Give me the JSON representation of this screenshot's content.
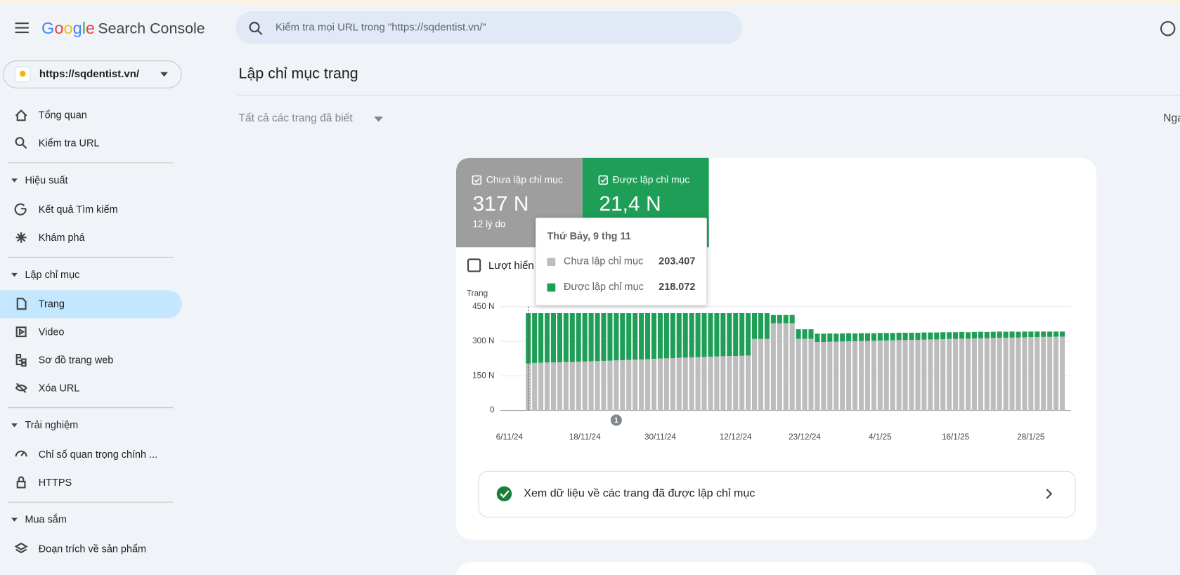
{
  "header": {
    "logo": "Google",
    "product": "Search Console",
    "search_placeholder": "Kiểm tra mọi URL trong \"https://sqdentist.vn/\""
  },
  "sidebar": {
    "property": "https://sqdentist.vn/",
    "groups": [
      {
        "items": [
          "Tổng quan",
          "Kiểm tra URL"
        ]
      },
      {
        "section": "Hiệu suất",
        "items": [
          "Kết quả Tìm kiếm",
          "Khám phá"
        ]
      },
      {
        "section": "Lập chỉ mục",
        "items": [
          "Trang",
          "Video",
          "Sơ đồ trang web",
          "Xóa URL"
        ]
      },
      {
        "section": "Trải nghiệm",
        "items": [
          "Chỉ số quan trọng chính ...",
          "HTTPS"
        ]
      },
      {
        "section": "Mua sắm",
        "items": [
          "Đoạn trích về sản phẩm"
        ]
      }
    ]
  },
  "page": {
    "title": "Lập chỉ mục trang",
    "filter": "Tất cả các trang đã biết",
    "right_cut": "Nga"
  },
  "card": {
    "tabs": [
      {
        "value": "317 N",
        "sub": "12 lý do"
      },
      {
        "value": "21,4 N"
      }
    ],
    "checkbox": "Lượt hiển thị",
    "tooltip_date": "Thứ Bảy, 9 thg 11",
    "annotation": "1",
    "link": "Xem dữ liệu về các trang đã được lập chỉ mục"
  },
  "chart_data": {
    "type": "stacked_bar",
    "y_axis_title": "Trang",
    "ylim": [
      0,
      450
    ],
    "yticks": [
      0,
      {
        "value": 150,
        "label": "150 N"
      },
      {
        "value": 300,
        "label": "300 N"
      },
      {
        "value": 450,
        "label": "450 N"
      }
    ],
    "grid": true,
    "x_axis_labels": [
      "6/11/24",
      "18/11/24",
      "30/11/24",
      "12/12/24",
      "23/12/24",
      "4/1/25",
      "16/1/25",
      "28/1/25"
    ],
    "series": [
      {
        "name": "Chưa lập chỉ mục",
        "color": "#bdbdbd",
        "values": [
          203.407,
          206,
          207,
          208,
          208,
          209,
          210,
          210,
          211,
          212,
          213,
          214,
          215,
          216,
          217,
          218,
          219,
          220,
          221,
          222,
          224,
          225,
          226,
          227,
          228,
          229,
          230,
          231,
          232,
          233,
          234,
          235,
          236,
          236,
          237,
          238,
          310,
          310,
          310,
          378,
          378,
          378,
          378,
          310,
          310,
          310,
          297,
          297,
          298,
          298,
          299,
          300,
          300,
          301,
          301,
          302,
          303,
          303,
          304,
          305,
          305,
          306,
          306,
          307,
          308,
          308,
          309,
          310,
          310,
          311,
          311,
          312,
          313,
          313,
          314,
          315,
          315,
          316,
          316,
          317,
          318,
          318,
          319,
          319,
          320,
          320
        ]
      },
      {
        "name": "Được lập chỉ mục",
        "color": "#1e9e57",
        "values": [
          218.072,
          216,
          215,
          214,
          214,
          213,
          212,
          212,
          211,
          210,
          209,
          208,
          207,
          206,
          205,
          204,
          203,
          202,
          201,
          200,
          198,
          197,
          196,
          195,
          194,
          193,
          192,
          191,
          190,
          189,
          188,
          187,
          186,
          186,
          185,
          184,
          112,
          112,
          112,
          36,
          36,
          36,
          36,
          42,
          42,
          42,
          36,
          36,
          36,
          35,
          35,
          35,
          34,
          34,
          34,
          33,
          33,
          33,
          32,
          32,
          32,
          31,
          31,
          31,
          30,
          30,
          30,
          29,
          29,
          29,
          28,
          28,
          28,
          27,
          27,
          27,
          26,
          26,
          25,
          25,
          24,
          24,
          23,
          23,
          22,
          22
        ]
      }
    ]
  }
}
